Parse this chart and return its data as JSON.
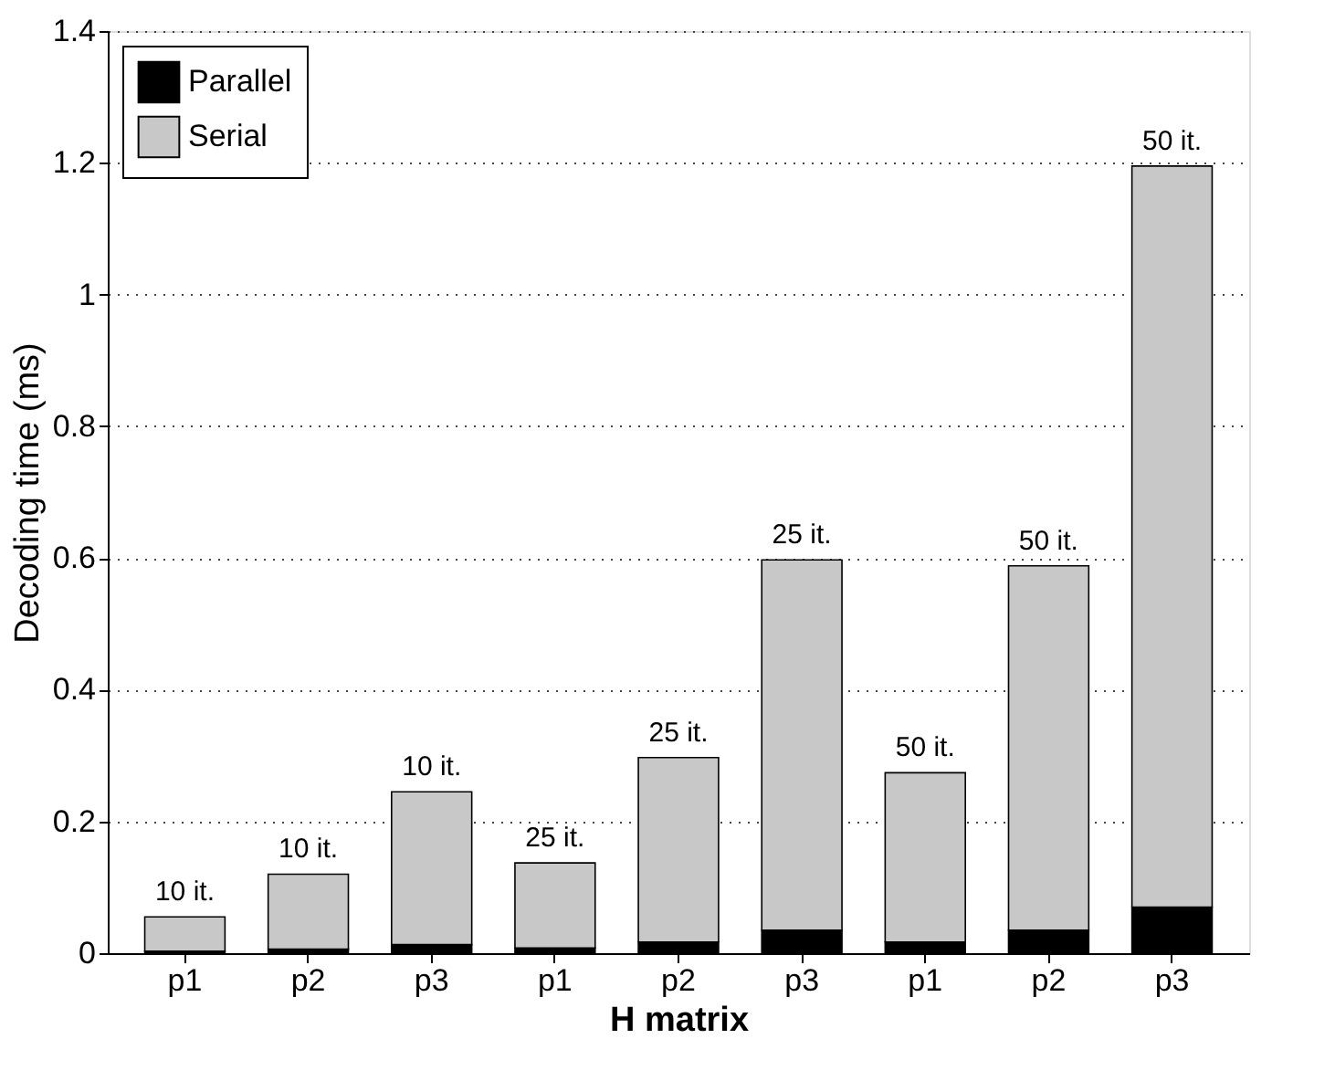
{
  "chart_data": {
    "type": "bar",
    "stacked": true,
    "xlabel": "H matrix",
    "ylabel": "Decoding time (ms)",
    "categories": [
      "p1",
      "p2",
      "p3",
      "p1",
      "p2",
      "p3",
      "p1",
      "p2",
      "p3"
    ],
    "series": [
      {
        "name": "Parallel",
        "color": "#000000",
        "values": [
          0.003,
          0.006,
          0.013,
          0.008,
          0.017,
          0.035,
          0.017,
          0.035,
          0.07
        ]
      },
      {
        "name": "Serial",
        "color": "#c8c8c8",
        "values": [
          0.052,
          0.114,
          0.232,
          0.129,
          0.28,
          0.562,
          0.257,
          0.553,
          1.125
        ]
      }
    ],
    "annotations": [
      {
        "text": "10 it.",
        "y": 0.055
      },
      {
        "text": "10 it.",
        "y": 0.12
      },
      {
        "text": "10 it.",
        "y": 0.245
      },
      {
        "text": "25 it.",
        "y": 0.137
      },
      {
        "text": "25 it.",
        "y": 0.297
      },
      {
        "text": "25 it.",
        "y": 0.597
      },
      {
        "text": "50 it.",
        "y": 0.274
      },
      {
        "text": "50 it.",
        "y": 0.588
      },
      {
        "text": "50 it.",
        "y": 1.195
      }
    ],
    "ylim": [
      0,
      1.4
    ],
    "yticks": [
      0,
      0.2,
      0.4,
      0.6,
      0.8,
      1,
      1.2,
      1.4
    ],
    "grid": "y",
    "legend": "top left"
  }
}
